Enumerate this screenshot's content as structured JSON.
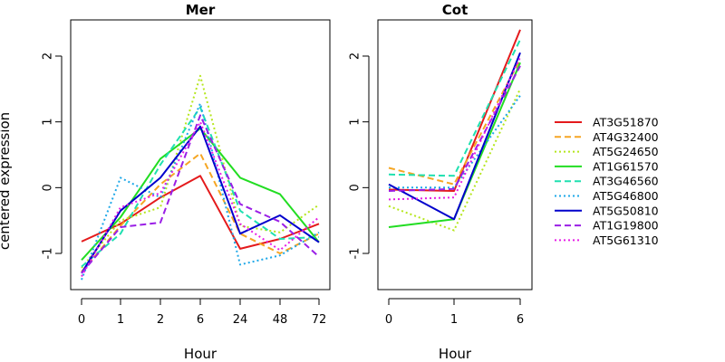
{
  "ylabel": "centered expression",
  "chart_data": [
    {
      "type": "line",
      "title": "Mer",
      "xlabel": "Hour",
      "categories": [
        "0",
        "1",
        "2",
        "6",
        "24",
        "48",
        "72"
      ],
      "ylim": [
        -1.55,
        2.55
      ],
      "yticks": [
        "-1",
        "0",
        "1",
        "2"
      ],
      "series": [
        {
          "name": "AT3G51870",
          "values": [
            -0.82,
            -0.55,
            -0.15,
            0.18,
            -0.93,
            -0.78,
            -0.55
          ]
        },
        {
          "name": "AT4G32400",
          "values": [
            -1.28,
            -0.58,
            0.05,
            0.52,
            -0.7,
            -1.0,
            -0.7
          ]
        },
        {
          "name": "AT5G24650",
          "values": [
            -1.22,
            -0.5,
            -0.3,
            1.7,
            -0.58,
            -0.68,
            -0.26
          ]
        },
        {
          "name": "AT1G61570",
          "values": [
            -1.1,
            -0.45,
            0.44,
            0.9,
            0.15,
            -0.1,
            -0.83
          ]
        },
        {
          "name": "AT3G46560",
          "values": [
            -1.2,
            -0.7,
            0.35,
            1.22,
            -0.35,
            -0.78,
            -0.75
          ]
        },
        {
          "name": "AT5G46800",
          "values": [
            -1.4,
            0.15,
            -0.15,
            1.28,
            -1.17,
            -1.03,
            -0.68
          ]
        },
        {
          "name": "AT5G50810",
          "values": [
            -1.3,
            -0.35,
            0.15,
            0.93,
            -0.7,
            -0.42,
            -0.83
          ]
        },
        {
          "name": "AT1G19800",
          "values": [
            -1.3,
            -0.6,
            -0.53,
            1.1,
            -0.25,
            -0.52,
            -1.05
          ]
        },
        {
          "name": "AT5G61310",
          "values": [
            -1.35,
            -0.3,
            -0.08,
            1.0,
            -0.55,
            -0.95,
            -0.45
          ]
        }
      ]
    },
    {
      "type": "line",
      "title": "Cot",
      "xlabel": "Hour",
      "categories": [
        "0",
        "1",
        "6"
      ],
      "ylim": [
        -1.55,
        2.55
      ],
      "yticks": [
        "-1",
        "0",
        "1",
        "2"
      ],
      "series": [
        {
          "name": "AT3G51870",
          "values": [
            -0.03,
            -0.05,
            2.4
          ]
        },
        {
          "name": "AT4G32400",
          "values": [
            0.3,
            0.05,
            1.95
          ]
        },
        {
          "name": "AT5G24650",
          "values": [
            -0.28,
            -0.65,
            1.5
          ]
        },
        {
          "name": "AT1G61570",
          "values": [
            -0.6,
            -0.48,
            1.9
          ]
        },
        {
          "name": "AT3G46560",
          "values": [
            0.2,
            0.18,
            2.25
          ]
        },
        {
          "name": "AT5G46800",
          "values": [
            0.0,
            0.0,
            1.4
          ]
        },
        {
          "name": "AT5G50810",
          "values": [
            0.05,
            -0.48,
            2.05
          ]
        },
        {
          "name": "AT1G19800",
          "values": [
            -0.05,
            -0.02,
            1.85
          ]
        },
        {
          "name": "AT5G61310",
          "values": [
            -0.18,
            -0.15,
            1.98
          ]
        }
      ]
    }
  ],
  "legend": {
    "placement": "right",
    "items": [
      {
        "name": "AT3G51870",
        "color": "#e41a1c",
        "dash": "solid"
      },
      {
        "name": "AT4G32400",
        "color": "#f5a623",
        "dash": "dashed"
      },
      {
        "name": "AT5G24650",
        "color": "#b5e61d",
        "dash": "dotted"
      },
      {
        "name": "AT1G61570",
        "color": "#22dd22",
        "dash": "solid"
      },
      {
        "name": "AT3G46560",
        "color": "#1fe0b0",
        "dash": "dashed"
      },
      {
        "name": "AT5G46800",
        "color": "#1fa8e8",
        "dash": "dotted"
      },
      {
        "name": "AT5G50810",
        "color": "#0000cc",
        "dash": "solid"
      },
      {
        "name": "AT1G19800",
        "color": "#9a1ee6",
        "dash": "dashed"
      },
      {
        "name": "AT5G61310",
        "color": "#e61ee6",
        "dash": "dotted"
      }
    ]
  }
}
